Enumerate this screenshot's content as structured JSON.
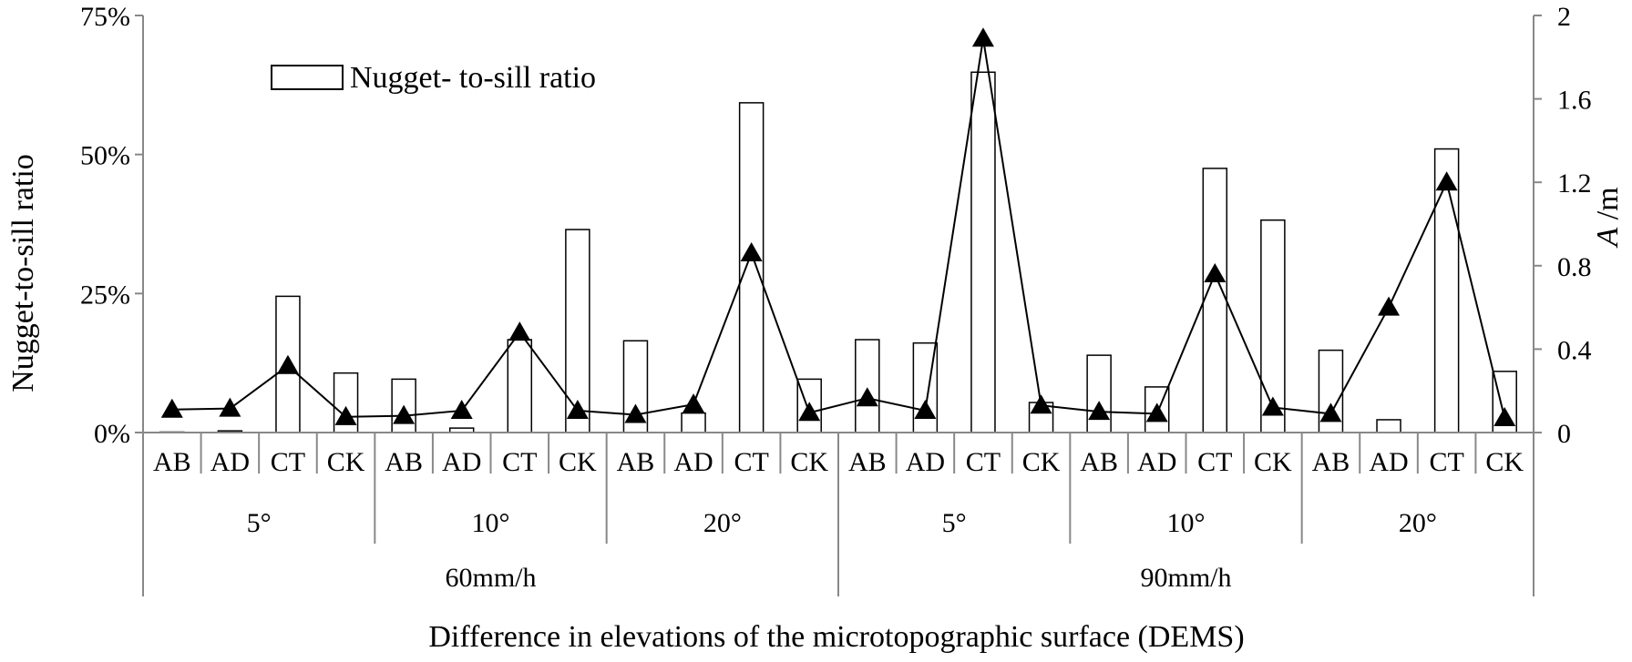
{
  "chart_data": {
    "type": "bar",
    "title": "",
    "xlabel": "Difference in elevations of the microtopographic surface (DEMS)",
    "ylabel": "Nugget-to-sill ratio",
    "y2label_italic": "A",
    "y2label_unit": " /m",
    "ylim": [
      0,
      0.75
    ],
    "y2lim": [
      0,
      2
    ],
    "yticks": [
      {
        "value": 0,
        "label": "0%"
      },
      {
        "value": 0.25,
        "label": "25%"
      },
      {
        "value": 0.5,
        "label": "50%"
      },
      {
        "value": 0.75,
        "label": "75%"
      }
    ],
    "y2ticks": [
      {
        "value": 0,
        "label": "0"
      },
      {
        "value": 0.4,
        "label": "0.4"
      },
      {
        "value": 0.8,
        "label": "0.8"
      },
      {
        "value": 1.2,
        "label": "1.2"
      },
      {
        "value": 1.6,
        "label": "1.6"
      },
      {
        "value": 2,
        "label": "2"
      }
    ],
    "legend_label": "Nugget- to-sill ratio",
    "legend_position": "top-left",
    "categories": [
      "AB",
      "AD",
      "CT",
      "CK",
      "AB",
      "AD",
      "CT",
      "CK",
      "AB",
      "AD",
      "CT",
      "CK",
      "AB",
      "AD",
      "CT",
      "CK",
      "AB",
      "AD",
      "CT",
      "CK",
      "AB",
      "AD",
      "CT",
      "CK"
    ],
    "slope_groups": [
      {
        "label": "5°",
        "count": 4
      },
      {
        "label": "10°",
        "count": 4
      },
      {
        "label": "20°",
        "count": 4
      },
      {
        "label": "5°",
        "count": 4
      },
      {
        "label": "10°",
        "count": 4
      },
      {
        "label": "20°",
        "count": 4
      }
    ],
    "rain_groups": [
      {
        "label": "60mm/h",
        "count": 12
      },
      {
        "label": "90mm/h",
        "count": 12
      }
    ],
    "series": [
      {
        "name": "Nugget- to-sill ratio",
        "kind": "bar",
        "axis": "left",
        "values": [
          0.0,
          0.003,
          0.245,
          0.107,
          0.096,
          0.008,
          0.167,
          0.365,
          0.165,
          0.035,
          0.593,
          0.096,
          0.167,
          0.161,
          0.648,
          0.054,
          0.139,
          0.082,
          0.475,
          0.382,
          0.148,
          0.023,
          0.51,
          0.11
        ]
      },
      {
        "name": "A",
        "kind": "line",
        "marker": "triangle",
        "axis": "right",
        "values": [
          0.11,
          0.115,
          0.32,
          0.075,
          0.08,
          0.105,
          0.48,
          0.105,
          0.085,
          0.135,
          0.86,
          0.095,
          0.165,
          0.105,
          1.89,
          0.13,
          0.1,
          0.09,
          0.76,
          0.12,
          0.09,
          0.6,
          1.2,
          0.07
        ]
      }
    ]
  }
}
